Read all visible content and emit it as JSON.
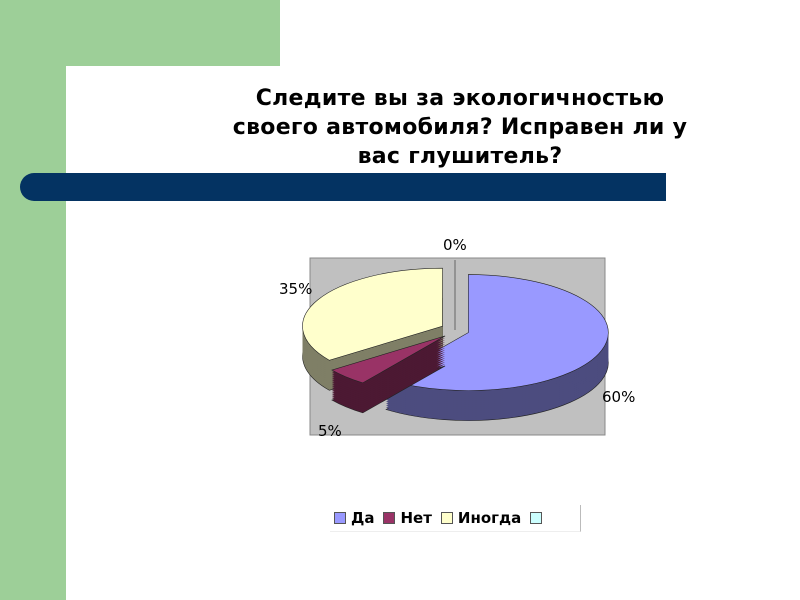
{
  "slide": {
    "title": "Следите вы за экологичностью своего автомобиля? Исправен ли у вас глушитель?"
  },
  "colors": {
    "green": "#9dcf98",
    "navy": "#043362",
    "plot_bg": "#c0c0c0"
  },
  "chart_data": {
    "type": "pie",
    "style": "3d-exploded",
    "title": "",
    "categories": [
      "Да",
      "Нет",
      "Иногда",
      ""
    ],
    "values": [
      60,
      5,
      35,
      0
    ],
    "labels": [
      "60%",
      "5%",
      "35%",
      "0%"
    ],
    "colors": [
      "#9999ff",
      "#993366",
      "#ffffcc",
      "#ccffff"
    ],
    "legend": "bottom"
  }
}
